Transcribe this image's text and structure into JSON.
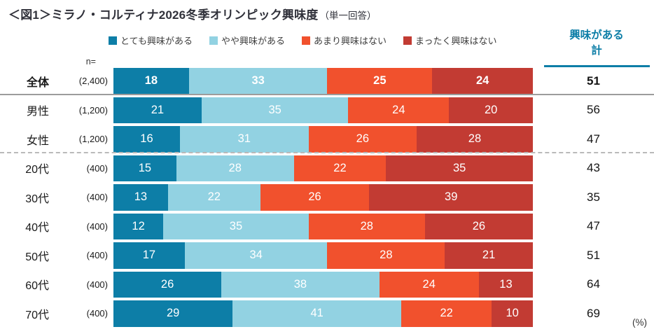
{
  "title": {
    "main": "＜図1＞ミラノ・コルティナ2026冬季オリンピック興味度",
    "suffix": "（単一回答）"
  },
  "n_header": "n=",
  "summary_header": "興味がある\n計",
  "unit_label": "(%)",
  "colors": {
    "accent": "#0d7ea7",
    "very_interested": "#0d7ea7",
    "somewhat_interested": "#92d2e2",
    "not_much_interested": "#f1512d",
    "not_at_all_interested": "#c23b33",
    "separator_solid": "#9c9c9c",
    "separator_dashed": "#b9b9b9"
  },
  "chart_data": {
    "type": "bar",
    "variant": "horizontal-stacked",
    "unit": "%",
    "title": "ミラノ・コルティナ2026冬季オリンピック興味度（単一回答）",
    "legend_position": "top",
    "xlim": [
      0,
      100
    ],
    "categories": [
      "全体",
      "男性",
      "女性",
      "20代",
      "30代",
      "40代",
      "50代",
      "60代",
      "70代"
    ],
    "n_labels": [
      "(2,400)",
      "(1,200)",
      "(1,200)",
      "(400)",
      "(400)",
      "(400)",
      "(400)",
      "(400)",
      "(400)"
    ],
    "series": [
      {
        "name": "とても興味がある",
        "color": "#0d7ea7",
        "values": [
          18,
          21,
          16,
          15,
          13,
          12,
          17,
          26,
          29
        ]
      },
      {
        "name": "やや興味がある",
        "color": "#92d2e2",
        "values": [
          33,
          35,
          31,
          28,
          22,
          35,
          34,
          38,
          41
        ]
      },
      {
        "name": "あまり興味はない",
        "color": "#f1512d",
        "values": [
          25,
          24,
          26,
          22,
          26,
          28,
          28,
          24,
          22
        ]
      },
      {
        "name": "まったく興味はない",
        "color": "#c23b33",
        "values": [
          24,
          20,
          28,
          35,
          39,
          26,
          21,
          13,
          10
        ]
      }
    ],
    "totals": {
      "label": "興味がある計",
      "values": [
        51,
        56,
        47,
        43,
        35,
        47,
        51,
        64,
        69
      ]
    },
    "emphasized_category": "全体",
    "separators": [
      {
        "after_row": 0,
        "style": "solid"
      },
      {
        "after_row": 2,
        "style": "dashed"
      }
    ]
  }
}
